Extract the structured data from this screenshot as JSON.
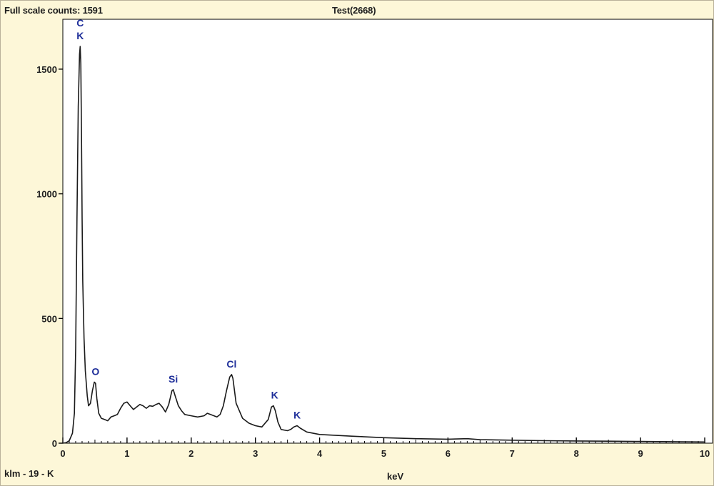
{
  "header": {
    "full_scale_counts": "Full scale counts: 1591",
    "title": "Test(2668)",
    "sample": "klm - 19 - K"
  },
  "colors": {
    "plot_bg": "#ffffff",
    "panel_bg": "#fdf7d8",
    "spectrum": "#1a1a1a",
    "peak_label": "#1f2f9a",
    "axis": "#000000"
  },
  "chart_data": {
    "type": "line",
    "title": "Test(2668)",
    "xlabel": "keV",
    "ylabel": "",
    "xlim": [
      0,
      10
    ],
    "ylim": [
      0,
      1700
    ],
    "grid": false,
    "x_ticks": [
      0,
      1,
      2,
      3,
      4,
      5,
      6,
      7,
      8,
      9,
      10
    ],
    "x_tick_labels": [
      "0",
      "1",
      "2",
      "3",
      "4",
      "5",
      "6",
      "7",
      "8",
      "9",
      "10"
    ],
    "y_ticks": [
      0,
      500,
      1000,
      1500
    ],
    "y_tick_labels": [
      "0",
      "500",
      "1000",
      "1500"
    ],
    "series": [
      {
        "x": [
          0.0,
          0.05,
          0.1,
          0.15,
          0.18,
          0.2,
          0.22,
          0.24,
          0.26,
          0.27,
          0.28,
          0.29,
          0.3,
          0.31,
          0.33,
          0.35,
          0.38,
          0.4,
          0.43,
          0.46,
          0.49,
          0.51,
          0.53,
          0.56,
          0.6,
          0.65,
          0.7,
          0.75,
          0.8,
          0.85,
          0.9,
          0.95,
          1.0,
          1.05,
          1.1,
          1.15,
          1.2,
          1.25,
          1.3,
          1.35,
          1.4,
          1.45,
          1.5,
          1.55,
          1.6,
          1.65,
          1.7,
          1.72,
          1.75,
          1.8,
          1.85,
          1.9,
          2.0,
          2.1,
          2.2,
          2.25,
          2.3,
          2.4,
          2.45,
          2.5,
          2.55,
          2.6,
          2.63,
          2.65,
          2.7,
          2.8,
          2.9,
          3.0,
          3.1,
          3.2,
          3.25,
          3.28,
          3.31,
          3.35,
          3.4,
          3.5,
          3.55,
          3.6,
          3.65,
          3.7,
          3.8,
          4.0,
          4.5,
          5.0,
          5.5,
          6.0,
          6.3,
          6.5,
          7.0,
          7.5,
          8.0,
          8.5,
          9.0,
          9.5,
          10.0
        ],
        "values": [
          0,
          2,
          10,
          40,
          120,
          380,
          900,
          1350,
          1560,
          1591,
          1520,
          1250,
          900,
          650,
          420,
          290,
          190,
          150,
          160,
          210,
          245,
          240,
          180,
          120,
          100,
          95,
          90,
          105,
          110,
          115,
          140,
          160,
          165,
          150,
          135,
          145,
          155,
          150,
          140,
          150,
          148,
          155,
          160,
          145,
          125,
          155,
          210,
          215,
          190,
          150,
          130,
          115,
          110,
          105,
          110,
          120,
          115,
          105,
          115,
          150,
          210,
          265,
          275,
          260,
          160,
          100,
          80,
          70,
          65,
          95,
          145,
          150,
          130,
          85,
          55,
          50,
          55,
          65,
          70,
          60,
          45,
          35,
          28,
          22,
          18,
          16,
          18,
          14,
          12,
          10,
          9,
          8,
          7,
          6,
          5
        ]
      }
    ],
    "annotations": [
      {
        "text": "C",
        "x": 0.27,
        "y": 1591,
        "line": 1
      },
      {
        "text": "K",
        "x": 0.27,
        "y": 1591,
        "line": 2
      },
      {
        "text": "O",
        "x": 0.51,
        "y": 245
      },
      {
        "text": "Si",
        "x": 1.72,
        "y": 215
      },
      {
        "text": "Cl",
        "x": 2.63,
        "y": 275
      },
      {
        "text": "K",
        "x": 3.3,
        "y": 150
      },
      {
        "text": "K",
        "x": 3.65,
        "y": 70
      }
    ]
  }
}
